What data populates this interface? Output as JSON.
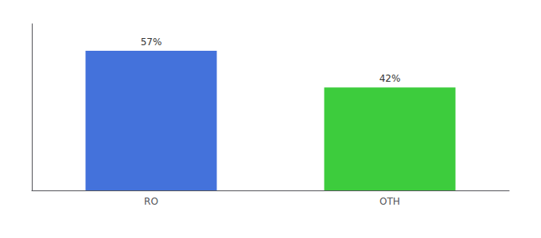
{
  "chart_data": {
    "type": "bar",
    "categories": [
      "RO",
      "OTH"
    ],
    "values": [
      57,
      42
    ],
    "value_labels": [
      "57%",
      "42%"
    ],
    "colors": [
      "#4472db",
      "#3dcc3d"
    ],
    "ylim": [
      0,
      68
    ],
    "yticks": [],
    "tick_labels": "x",
    "grid": false,
    "data_labels": true
  }
}
